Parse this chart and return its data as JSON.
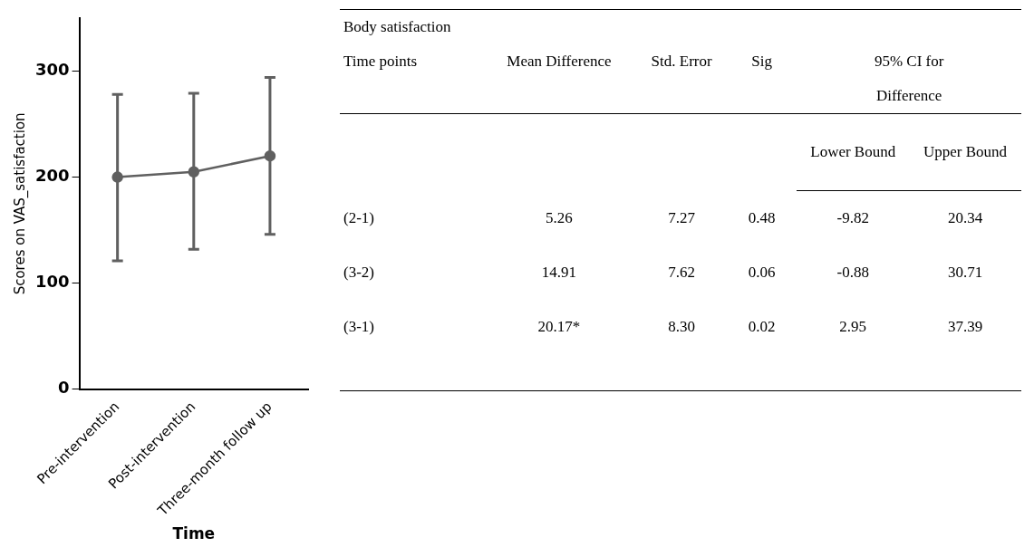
{
  "chart_data": [
    {
      "type": "line",
      "xlabel": "Time",
      "ylabel": "Scores on VAS_satisfaction",
      "categories": [
        "Pre-intervention",
        "Post-intervention",
        "Three-month follow up"
      ],
      "series": [
        {
          "color": "#606060",
          "values": [
            200,
            205,
            220
          ],
          "errors": [
            [
              121,
              278
            ],
            [
              132,
              279
            ],
            [
              146,
              294
            ]
          ]
        }
      ],
      "ylim": [
        0,
        350
      ],
      "yticks": [
        0,
        100,
        200,
        300
      ],
      "grid": false,
      "legend": false,
      "marker": "circle",
      "line_style": "solid"
    },
    {
      "type": "other",
      "title": "Body satisfaction",
      "annotations": [
        "Time points",
        "Mean Difference",
        "Std. Error",
        "Sig",
        "95% CI for Difference",
        "Lower Bound",
        "Upper Bound",
        "(2-1)",
        "5.26",
        "7.27",
        "0.48",
        "-9.82",
        "20.34",
        "(3-2)",
        "14.91",
        "7.62",
        "0.06",
        "-0.88",
        "30.71",
        "(3-1)",
        "20.17*",
        "8.30",
        "0.02",
        "2.95",
        "37.39"
      ]
    }
  ]
}
